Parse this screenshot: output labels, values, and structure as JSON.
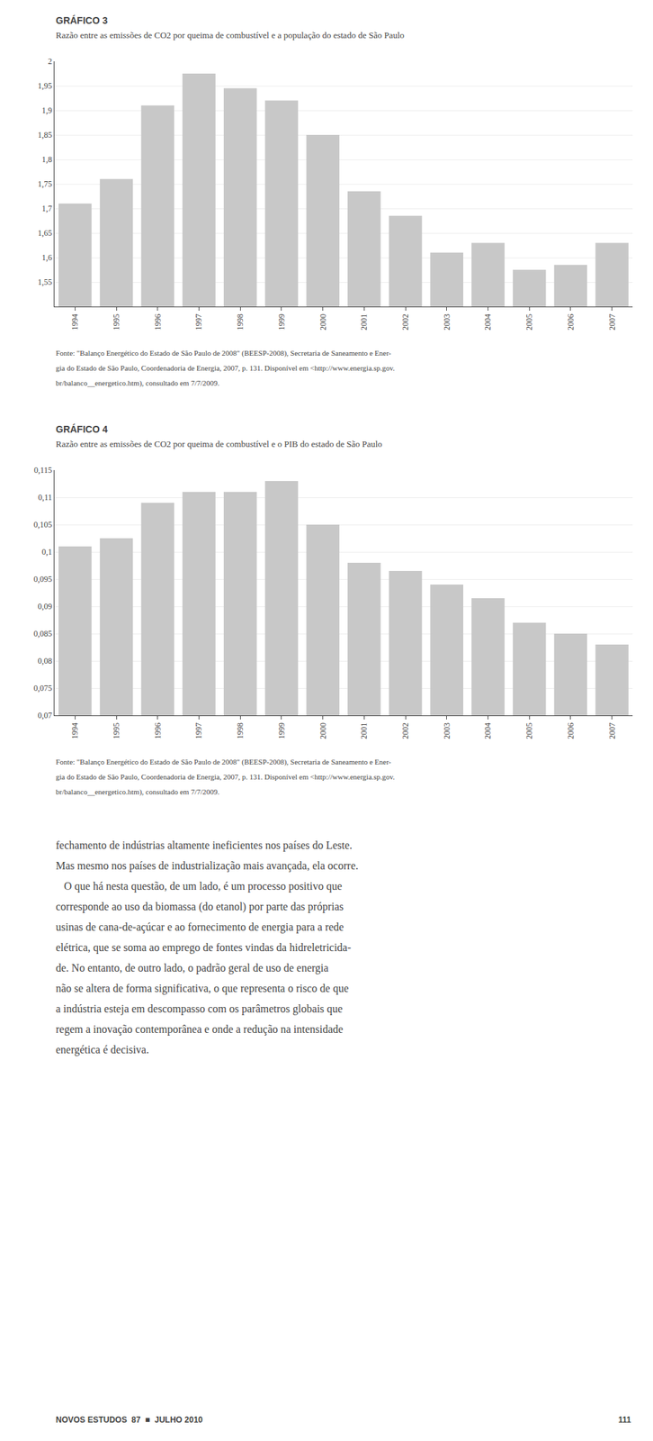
{
  "chart_data": [
    {
      "type": "bar",
      "title": "GRÁFICO 3",
      "subtitle": "Razão entre as emissões de CO2 por queima de combustível e a população do estado de São Paulo",
      "categories": [
        "1994",
        "1995",
        "1996",
        "1997",
        "1998",
        "1999",
        "2000",
        "2001",
        "2002",
        "2003",
        "2004",
        "2005",
        "2006",
        "2007"
      ],
      "values": [
        1.71,
        1.76,
        1.91,
        1.975,
        1.945,
        1.92,
        1.85,
        1.735,
        1.685,
        1.61,
        1.63,
        1.575,
        1.585,
        1.63
      ],
      "color": "#c8c8c8",
      "ylim": [
        1.5,
        2.0
      ],
      "yticks": [
        {
          "value": 1.55,
          "label": "1,55"
        },
        {
          "value": 1.6,
          "label": "1,6"
        },
        {
          "value": 1.65,
          "label": "1,65"
        },
        {
          "value": 1.7,
          "label": "1,7"
        },
        {
          "value": 1.75,
          "label": "1,75"
        },
        {
          "value": 1.8,
          "label": "1,8"
        },
        {
          "value": 1.85,
          "label": "1,85"
        },
        {
          "value": 1.9,
          "label": "1,9"
        },
        {
          "value": 1.95,
          "label": "1,95"
        },
        2
      ],
      "grid": true,
      "annotations": [
        "Fonte: \"Balanço Energético do Estado de São Paulo de 2008\" (BEESP-2008), Secretaria de Saneamento e Ener-",
        "gia do Estado de São Paulo, Coordenadoria de Energia, 2007, p. 131. Disponível em <http://www.energia.sp.gov.",
        "br/balanco__energetico.htm), consultado em 7/7/2009."
      ]
    },
    {
      "type": "bar",
      "title": "GRÁFICO 4",
      "subtitle": "Razão entre as emissões de CO2 por queima de combustível e o PIB do estado de São Paulo",
      "categories": [
        "1994",
        "1995",
        "1996",
        "1997",
        "1998",
        "1999",
        "2000",
        "2001",
        "2002",
        "2003",
        "2004",
        "2005",
        "2006",
        "2007"
      ],
      "values": [
        0.101,
        0.1025,
        0.109,
        0.111,
        0.111,
        0.113,
        0.105,
        0.098,
        0.0965,
        0.094,
        0.0915,
        0.087,
        0.085,
        0.083
      ],
      "color": "#c8c8c8",
      "ylim": [
        0.07,
        0.115
      ],
      "yticks": [
        {
          "value": 0.07,
          "label": "0,07"
        },
        {
          "value": 0.075,
          "label": "0,075"
        },
        {
          "value": 0.08,
          "label": "0,08"
        },
        {
          "value": 0.085,
          "label": "0,085"
        },
        {
          "value": 0.09,
          "label": "0,09"
        },
        {
          "value": 0.095,
          "label": "0,095"
        },
        {
          "value": 0.1,
          "label": "0,1"
        },
        {
          "value": 0.105,
          "label": "0,105"
        },
        {
          "value": 0.11,
          "label": "0,11"
        },
        {
          "value": 0.115,
          "label": "0,115"
        }
      ],
      "grid": true,
      "annotations": [
        "Fonte: \"Balanço Energético do Estado de São Paulo de 2008\" (BEESP-2008), Secretaria de Saneamento e Ener-",
        "gia do Estado de São Paulo, Coordenadoria de Energia, 2007, p. 131. Disponível em <http://www.energia.sp.gov.",
        "br/balanco__energetico.htm), consultado em 7/7/2009."
      ]
    }
  ],
  "annotations": [
    "fechamento de indústrias altamente ineficientes nos países do Leste.",
    "Mas mesmo nos países de industrialização mais avançada, ela ocorre.",
    "   O que há nesta questão, de um lado, é um processo positivo que",
    "corresponde ao uso da biomassa (do etanol) por parte das próprias",
    "usinas de cana-de-açúcar e ao fornecimento de energia para a rede",
    "elétrica, que se soma ao emprego de fontes vindas da hidreletricida-",
    "de. No entanto, de outro lado, o padrão geral de uso de energia",
    "não se altera de forma significativa, o que representa o risco de que",
    "a indústria esteja em descompasso com os parâmetros globais que",
    "regem a inovação contemporânea e onde a redução na intensidade",
    "energética é decisiva."
  ],
  "footer": [
    "NOVOS ESTUDOS  87  ■  JULHO 2010",
    "111"
  ]
}
